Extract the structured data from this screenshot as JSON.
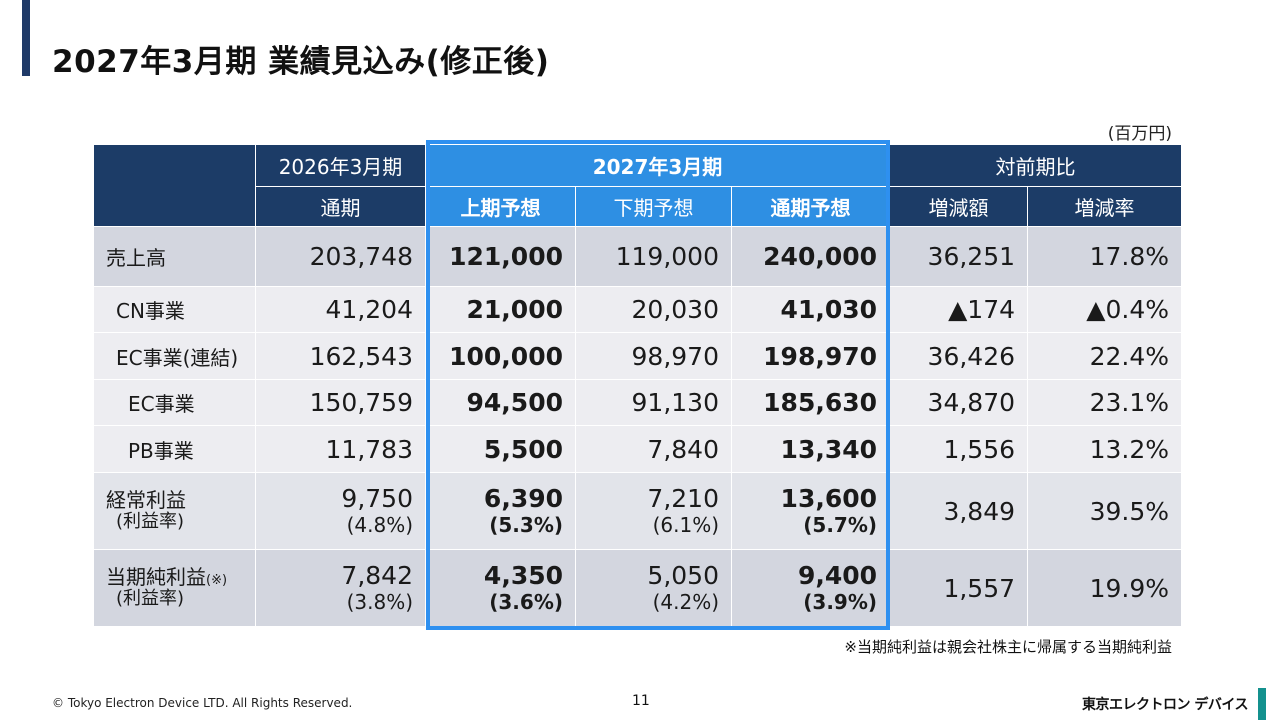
{
  "title": "2027年3月期 業績見込み(修正後)",
  "unit": "(百万円)",
  "table": {
    "headers": {
      "fy2026": "2026年3月期",
      "fy2027": "2027年3月期",
      "comparison": "対前期比",
      "fy2026_full": "通期",
      "first_half_forecast": "上期予想",
      "second_half_forecast": "下期予想",
      "full_year_forecast": "通期予想",
      "change_amount": "増減額",
      "change_rate": "増減率"
    },
    "rows": [
      {
        "label": "売上高",
        "v2026": "203,748",
        "h1": "121,000",
        "h2": "119,000",
        "fy": "240,000",
        "diff": "36,251",
        "rate": "17.8%"
      },
      {
        "label": "CN事業",
        "v2026": "41,204",
        "h1": "21,000",
        "h2": "20,030",
        "fy": "41,030",
        "diff": "▲174",
        "rate": "▲0.4%"
      },
      {
        "label": "EC事業(連結)",
        "v2026": "162,543",
        "h1": "100,000",
        "h2": "98,970",
        "fy": "198,970",
        "diff": "36,426",
        "rate": "22.4%"
      },
      {
        "label": "EC事業",
        "v2026": "150,759",
        "h1": "94,500",
        "h2": "91,130",
        "fy": "185,630",
        "diff": "34,870",
        "rate": "23.1%"
      },
      {
        "label": "PB事業",
        "v2026": "11,783",
        "h1": "5,500",
        "h2": "7,840",
        "fy": "13,340",
        "diff": "1,556",
        "rate": "13.2%"
      },
      {
        "label": "経常利益",
        "sublabel": "(利益率)",
        "v2026": "9,750",
        "v2026_pct": "(4.8%)",
        "h1": "6,390",
        "h1_pct": "(5.3%)",
        "h2": "7,210",
        "h2_pct": "(6.1%)",
        "fy": "13,600",
        "fy_pct": "(5.7%)",
        "diff": "3,849",
        "rate": "39.5%"
      },
      {
        "label": "当期純利益",
        "label_note": "(※)",
        "sublabel": "(利益率)",
        "v2026": "7,842",
        "v2026_pct": "(3.8%)",
        "h1": "4,350",
        "h1_pct": "(3.6%)",
        "h2": "5,050",
        "h2_pct": "(4.2%)",
        "fy": "9,400",
        "fy_pct": "(3.9%)",
        "diff": "1,557",
        "rate": "19.9%"
      }
    ]
  },
  "footnote": "※当期純利益は親会社株主に帰属する当期純利益",
  "footer": {
    "copyright": "© Tokyo Electron Device LTD. All Rights Reserved.",
    "page_number": "11",
    "company_logo": "東京エレクトロン デバイス"
  },
  "colors": {
    "header_navy": "#1c3c67",
    "highlight_blue": "#2e8fe3",
    "accent_teal": "#14918e"
  }
}
